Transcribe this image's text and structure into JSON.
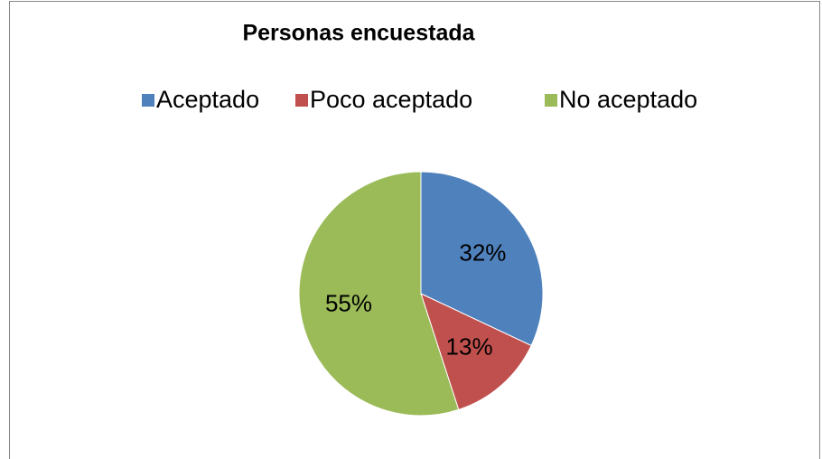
{
  "chart_data": {
    "type": "pie",
    "title": "Personas encuestada",
    "categories": [
      "Aceptado",
      "Poco aceptado",
      "No aceptado"
    ],
    "values": [
      32,
      13,
      55
    ],
    "value_labels": [
      "32%",
      "13%",
      "55%"
    ],
    "colors": [
      "#4f81bd",
      "#c0504d",
      "#9bbb59"
    ],
    "legend": "top"
  }
}
